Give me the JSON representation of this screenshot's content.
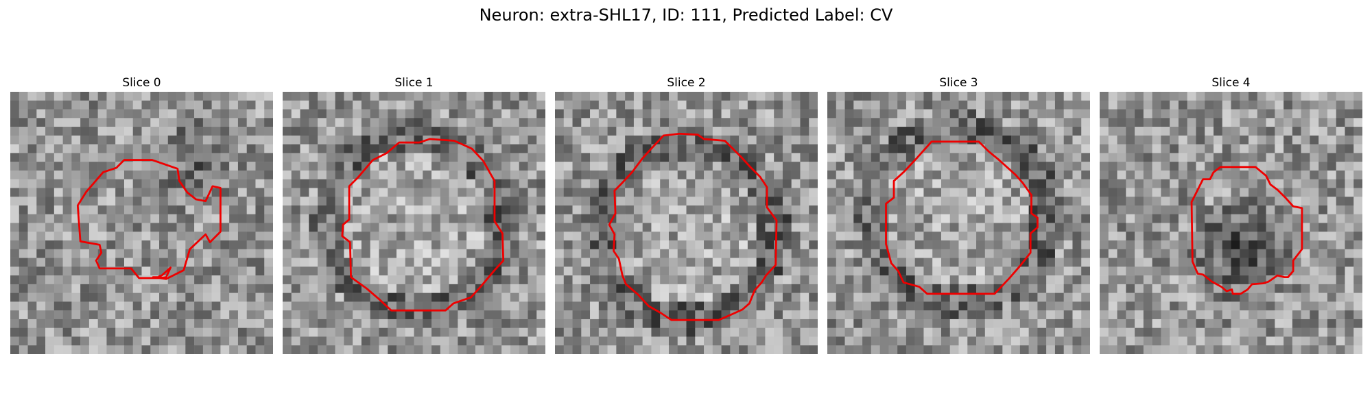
{
  "figure": {
    "title": "Neuron: extra-SHL17, ID: 111, Predicted Label: CV"
  },
  "panels": [
    {
      "label": "Slice 0"
    },
    {
      "label": "Slice 1"
    },
    {
      "label": "Slice 2"
    },
    {
      "label": "Slice 3"
    },
    {
      "label": "Slice 4"
    }
  ],
  "colors": {
    "contour": "#ff0000",
    "background": "#ffffff"
  }
}
